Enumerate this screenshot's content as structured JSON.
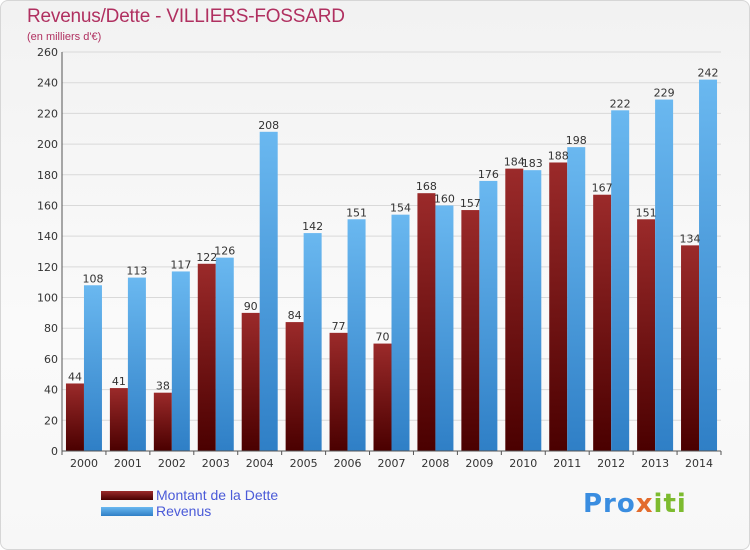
{
  "header": {
    "title": "Revenus/Dette - VILLIERS-FOSSARD",
    "subtitle": "(en milliers d'€)"
  },
  "legend": {
    "debt": "Montant de la Dette",
    "revenue": "Revenus"
  },
  "logo": {
    "p1": "Pro",
    "p2": "x",
    "p3": "iti"
  },
  "colors": {
    "debt_top": "#9b2a2a",
    "debt_bottom": "#4a0000",
    "revenue_top": "#6ab8f0",
    "revenue_bottom": "#2f7fc6",
    "grid": "#d9d9d9"
  },
  "chart_data": {
    "type": "bar",
    "title": "Revenus/Dette - VILLIERS-FOSSARD",
    "ylabel": "(en milliers d'€)",
    "xlabel": "",
    "categories": [
      "2000",
      "2001",
      "2002",
      "2003",
      "2004",
      "2005",
      "2006",
      "2007",
      "2008",
      "2009",
      "2010",
      "2011",
      "2012",
      "2013",
      "2014"
    ],
    "series": [
      {
        "name": "Montant de la Dette",
        "values": [
          44,
          41,
          38,
          122,
          90,
          84,
          77,
          70,
          168,
          157,
          184,
          188,
          167,
          151,
          134
        ]
      },
      {
        "name": "Revenus",
        "values": [
          108,
          113,
          117,
          126,
          208,
          142,
          151,
          154,
          160,
          176,
          183,
          198,
          222,
          229,
          242
        ]
      }
    ],
    "ylim": [
      0,
      260
    ],
    "yticks": [
      0,
      20,
      40,
      60,
      80,
      100,
      120,
      140,
      160,
      180,
      200,
      220,
      240,
      260
    ],
    "grid": true,
    "legend_position": "bottom-left"
  }
}
